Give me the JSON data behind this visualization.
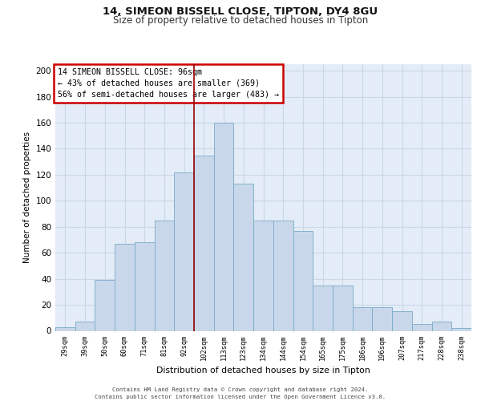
{
  "title1": "14, SIMEON BISSELL CLOSE, TIPTON, DY4 8GU",
  "title2": "Size of property relative to detached houses in Tipton",
  "xlabel": "Distribution of detached houses by size in Tipton",
  "ylabel": "Number of detached properties",
  "categories": [
    "29sqm",
    "39sqm",
    "50sqm",
    "60sqm",
    "71sqm",
    "81sqm",
    "92sqm",
    "102sqm",
    "113sqm",
    "123sqm",
    "134sqm",
    "144sqm",
    "154sqm",
    "165sqm",
    "175sqm",
    "186sqm",
    "196sqm",
    "207sqm",
    "217sqm",
    "228sqm",
    "238sqm"
  ],
  "bar_values": [
    3,
    7,
    39,
    67,
    68,
    85,
    122,
    135,
    160,
    113,
    85,
    85,
    77,
    35,
    35,
    18,
    18,
    15,
    5,
    7,
    2
  ],
  "bar_color": "#c8d8ea",
  "bar_edge_color": "#7aaac8",
  "annotation_text": "14 SIMEON BISSELL CLOSE: 96sqm\n← 43% of detached houses are smaller (369)\n56% of semi-detached houses are larger (483) →",
  "annotation_box_color": "#cc0000",
  "grid_color": "#c8d8e8",
  "bg_color": "#e4ecf7",
  "ylim": [
    0,
    205
  ],
  "yticks": [
    0,
    20,
    40,
    60,
    80,
    100,
    120,
    140,
    160,
    180,
    200
  ],
  "red_line_x": 7.0,
  "footer1": "Contains HM Land Registry data © Crown copyright and database right 2024.",
  "footer2": "Contains public sector information licensed under the Open Government Licence v3.0."
}
